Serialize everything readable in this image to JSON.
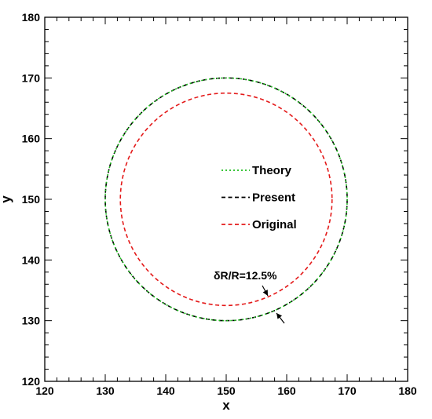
{
  "chart_data": {
    "type": "line",
    "xlabel": "x",
    "ylabel": "y",
    "xlim": [
      120,
      180
    ],
    "ylim": [
      120,
      180
    ],
    "xticks": [
      120,
      130,
      140,
      150,
      160,
      170,
      180
    ],
    "yticks": [
      120,
      130,
      140,
      150,
      160,
      170,
      180
    ],
    "grid": false,
    "legend_position": "center",
    "series": [
      {
        "name": "Theory",
        "shape": "circle",
        "center": [
          150,
          150
        ],
        "radius": 20,
        "color": "#1fbf1f",
        "dash": "dotted"
      },
      {
        "name": "Present",
        "shape": "circle",
        "center": [
          150,
          150
        ],
        "radius": 20,
        "color": "#000000",
        "dash": "dashed"
      },
      {
        "name": "Original",
        "shape": "circle",
        "center": [
          150,
          150
        ],
        "radius": 17.5,
        "color": "#e41a1a",
        "dash": "dashed"
      }
    ],
    "annotations": [
      {
        "text": "δR/R=12.5%"
      }
    ]
  }
}
